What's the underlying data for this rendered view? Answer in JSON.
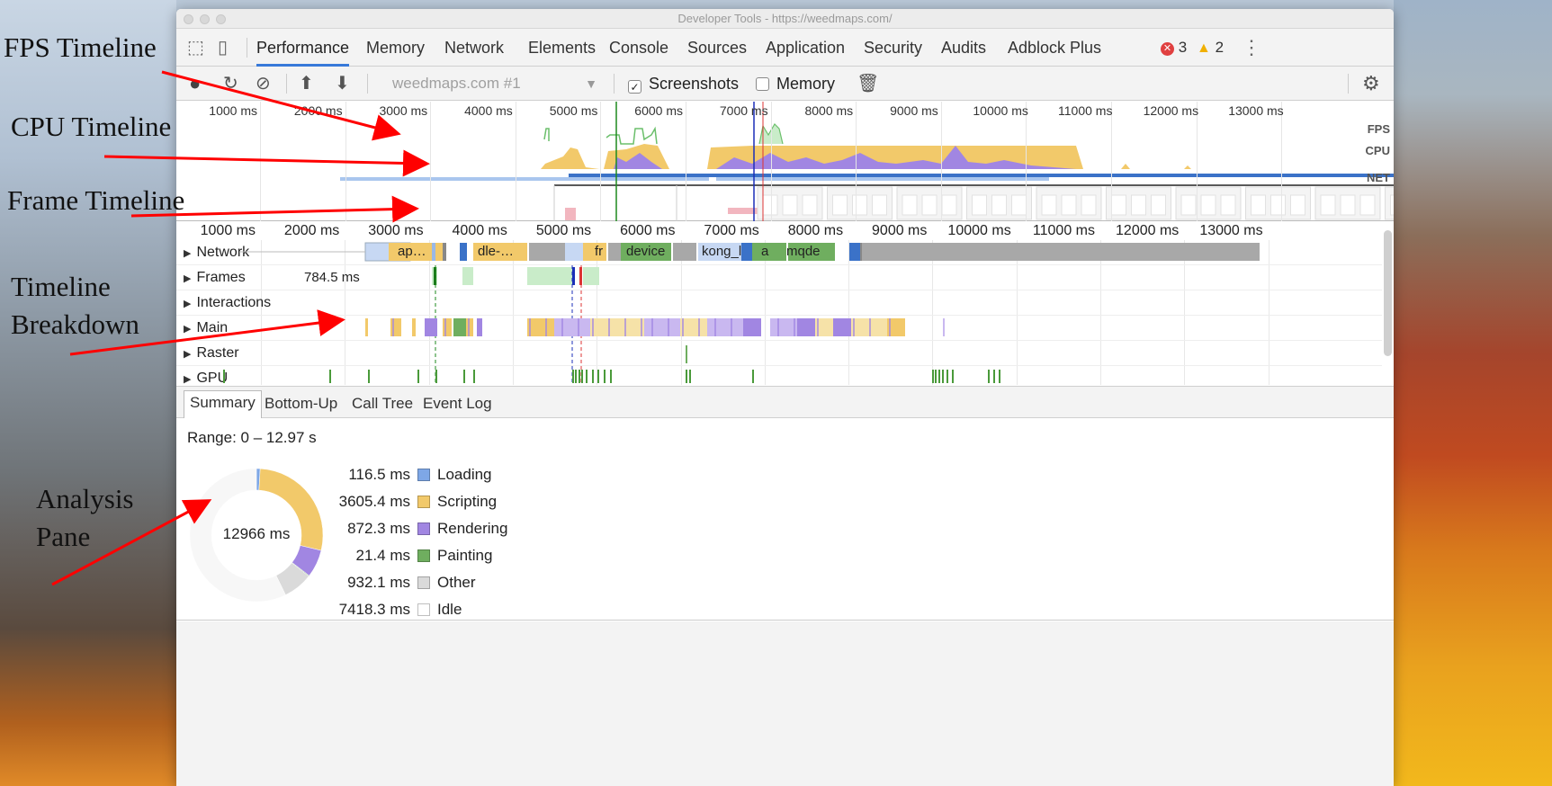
{
  "window": {
    "title": "Developer Tools - https://weedmaps.com/"
  },
  "tabs": [
    {
      "label": "Performance",
      "active": true
    },
    {
      "label": "Memory"
    },
    {
      "label": "Network"
    },
    {
      "label": "Elements"
    },
    {
      "label": "Console"
    },
    {
      "label": "Sources"
    },
    {
      "label": "Application"
    },
    {
      "label": "Security"
    },
    {
      "label": "Audits"
    },
    {
      "label": "Adblock Plus"
    }
  ],
  "badges": {
    "errors": "3",
    "warnings": "2"
  },
  "toolbar": {
    "profile": "weedmaps.com #1",
    "screenshots_label": "Screenshots",
    "screenshots_checked": true,
    "memory_label": "Memory",
    "memory_checked": false
  },
  "overview": {
    "ticks": [
      "1000 ms",
      "2000 ms",
      "3000 ms",
      "4000 ms",
      "5000 ms",
      "6000 ms",
      "7000 ms",
      "8000 ms",
      "9000 ms",
      "10000 ms",
      "11000 ms",
      "12000 ms",
      "13000 ms"
    ],
    "lanes": [
      "FPS",
      "CPU",
      "NET"
    ]
  },
  "timeline": {
    "ticks": [
      "1000 ms",
      "2000 ms",
      "3000 ms",
      "4000 ms",
      "5000 ms",
      "6000 ms",
      "7000 ms",
      "8000 ms",
      "9000 ms",
      "10000 ms",
      "11000 ms",
      "12000 ms",
      "13000 ms"
    ],
    "tracks": [
      "Network",
      "Frames",
      "Interactions",
      "Main",
      "Raster",
      "GPU"
    ],
    "frame_duration": "784.5 ms",
    "network_labels": [
      "ap…",
      "dle-…",
      "fr",
      "device",
      "kong_l",
      "a",
      "mqde"
    ]
  },
  "subtabs": [
    {
      "label": "Summary",
      "active": true
    },
    {
      "label": "Bottom-Up"
    },
    {
      "label": "Call Tree"
    },
    {
      "label": "Event Log"
    }
  ],
  "summary": {
    "range": "Range: 0 – 12.97 s",
    "total": "12966 ms",
    "rows": [
      {
        "value": "116.5 ms",
        "name": "Loading",
        "color": "#7ea7e6"
      },
      {
        "value": "3605.4 ms",
        "name": "Scripting",
        "color": "#f2c96a"
      },
      {
        "value": "872.3 ms",
        "name": "Rendering",
        "color": "#a186e2"
      },
      {
        "value": "21.4 ms",
        "name": "Painting",
        "color": "#6fae5f"
      },
      {
        "value": "932.1 ms",
        "name": "Other",
        "color": "#dadada"
      },
      {
        "value": "7418.3 ms",
        "name": "Idle",
        "color": "#ffffff"
      }
    ]
  },
  "annotations": {
    "fps": "FPS Timeline",
    "cpu": "CPU Timeline",
    "frame": "Frame Timeline",
    "breakdown_1": "Timeline",
    "breakdown_2": "Breakdown",
    "analysis_1": "Analysis",
    "analysis_2": "Pane"
  }
}
